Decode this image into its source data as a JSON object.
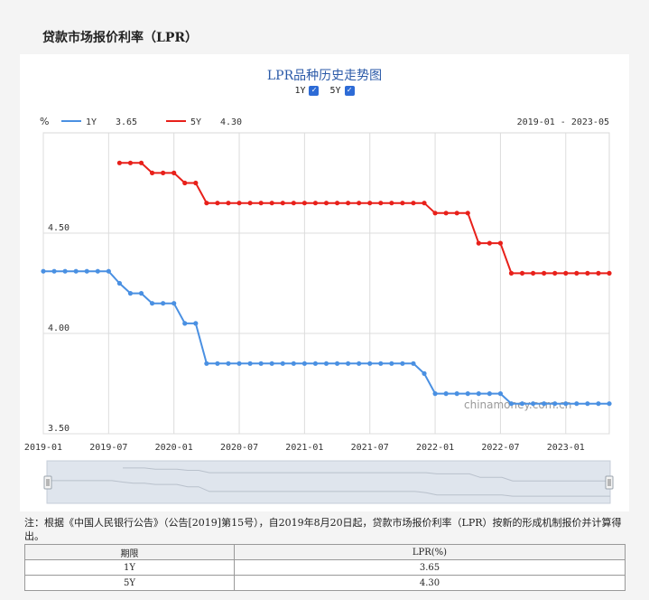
{
  "page": {
    "heading": "贷款市场报价利率（LPR）",
    "note": "注：根据《中国人民银行公告》（公告[2019]第15号），自2019年8月20日起，贷款市场报价利率（LPR）按新的形成机制报价并计算得出。",
    "table": {
      "headers": [
        "期限",
        "LPR(%)"
      ],
      "rows": [
        [
          "1Y",
          "3.65"
        ],
        [
          "5Y",
          "4.30"
        ]
      ]
    }
  },
  "chart_toggles": [
    {
      "label": "1Y",
      "checked": true
    },
    {
      "label": "5Y",
      "checked": true
    }
  ],
  "chart_data": {
    "type": "line",
    "title": "LPR品种历史走势图",
    "unit_label": "%",
    "range_label": "2019-01 - 2023-05",
    "watermark": "chinamoney.com.cn",
    "ylim": [
      3.5,
      5.0
    ],
    "yticks": [
      3.5,
      4.0,
      4.5
    ],
    "ytick_labels": [
      "3.50",
      "4.00",
      "4.50"
    ],
    "xlim": [
      "2019-01",
      "2023-05"
    ],
    "xticks": [
      "2019-01",
      "2019-07",
      "2020-01",
      "2020-07",
      "2021-01",
      "2021-07",
      "2022-01",
      "2022-07",
      "2023-01"
    ],
    "grid": true,
    "series": [
      {
        "name": "1Y",
        "latest": "3.65",
        "color": "#4a90e2",
        "points": [
          [
            "2019-01",
            4.31
          ],
          [
            "2019-02",
            4.31
          ],
          [
            "2019-03",
            4.31
          ],
          [
            "2019-04",
            4.31
          ],
          [
            "2019-05",
            4.31
          ],
          [
            "2019-06",
            4.31
          ],
          [
            "2019-07",
            4.31
          ],
          [
            "2019-08",
            4.25
          ],
          [
            "2019-09",
            4.2
          ],
          [
            "2019-10",
            4.2
          ],
          [
            "2019-11",
            4.15
          ],
          [
            "2019-12",
            4.15
          ],
          [
            "2020-01",
            4.15
          ],
          [
            "2020-02",
            4.05
          ],
          [
            "2020-03",
            4.05
          ],
          [
            "2020-04",
            3.85
          ],
          [
            "2020-05",
            3.85
          ],
          [
            "2020-06",
            3.85
          ],
          [
            "2020-07",
            3.85
          ],
          [
            "2020-08",
            3.85
          ],
          [
            "2020-09",
            3.85
          ],
          [
            "2020-10",
            3.85
          ],
          [
            "2020-11",
            3.85
          ],
          [
            "2020-12",
            3.85
          ],
          [
            "2021-01",
            3.85
          ],
          [
            "2021-02",
            3.85
          ],
          [
            "2021-03",
            3.85
          ],
          [
            "2021-04",
            3.85
          ],
          [
            "2021-05",
            3.85
          ],
          [
            "2021-06",
            3.85
          ],
          [
            "2021-07",
            3.85
          ],
          [
            "2021-08",
            3.85
          ],
          [
            "2021-09",
            3.85
          ],
          [
            "2021-10",
            3.85
          ],
          [
            "2021-11",
            3.85
          ],
          [
            "2021-12",
            3.8
          ],
          [
            "2022-01",
            3.7
          ],
          [
            "2022-02",
            3.7
          ],
          [
            "2022-03",
            3.7
          ],
          [
            "2022-04",
            3.7
          ],
          [
            "2022-05",
            3.7
          ],
          [
            "2022-06",
            3.7
          ],
          [
            "2022-07",
            3.7
          ],
          [
            "2022-08",
            3.65
          ],
          [
            "2022-09",
            3.65
          ],
          [
            "2022-10",
            3.65
          ],
          [
            "2022-11",
            3.65
          ],
          [
            "2022-12",
            3.65
          ],
          [
            "2023-01",
            3.65
          ],
          [
            "2023-02",
            3.65
          ],
          [
            "2023-03",
            3.65
          ],
          [
            "2023-04",
            3.65
          ],
          [
            "2023-05",
            3.65
          ]
        ]
      },
      {
        "name": "5Y",
        "latest": "4.30",
        "color": "#e8201a",
        "points": [
          [
            "2019-08",
            4.85
          ],
          [
            "2019-09",
            4.85
          ],
          [
            "2019-10",
            4.85
          ],
          [
            "2019-11",
            4.8
          ],
          [
            "2019-12",
            4.8
          ],
          [
            "2020-01",
            4.8
          ],
          [
            "2020-02",
            4.75
          ],
          [
            "2020-03",
            4.75
          ],
          [
            "2020-04",
            4.65
          ],
          [
            "2020-05",
            4.65
          ],
          [
            "2020-06",
            4.65
          ],
          [
            "2020-07",
            4.65
          ],
          [
            "2020-08",
            4.65
          ],
          [
            "2020-09",
            4.65
          ],
          [
            "2020-10",
            4.65
          ],
          [
            "2020-11",
            4.65
          ],
          [
            "2020-12",
            4.65
          ],
          [
            "2021-01",
            4.65
          ],
          [
            "2021-02",
            4.65
          ],
          [
            "2021-03",
            4.65
          ],
          [
            "2021-04",
            4.65
          ],
          [
            "2021-05",
            4.65
          ],
          [
            "2021-06",
            4.65
          ],
          [
            "2021-07",
            4.65
          ],
          [
            "2021-08",
            4.65
          ],
          [
            "2021-09",
            4.65
          ],
          [
            "2021-10",
            4.65
          ],
          [
            "2021-11",
            4.65
          ],
          [
            "2021-12",
            4.65
          ],
          [
            "2022-01",
            4.6
          ],
          [
            "2022-02",
            4.6
          ],
          [
            "2022-03",
            4.6
          ],
          [
            "2022-04",
            4.6
          ],
          [
            "2022-05",
            4.45
          ],
          [
            "2022-06",
            4.45
          ],
          [
            "2022-07",
            4.45
          ],
          [
            "2022-08",
            4.3
          ],
          [
            "2022-09",
            4.3
          ],
          [
            "2022-10",
            4.3
          ],
          [
            "2022-11",
            4.3
          ],
          [
            "2022-12",
            4.3
          ],
          [
            "2023-01",
            4.3
          ],
          [
            "2023-02",
            4.3
          ],
          [
            "2023-03",
            4.3
          ],
          [
            "2023-04",
            4.3
          ],
          [
            "2023-05",
            4.3
          ]
        ]
      }
    ]
  }
}
